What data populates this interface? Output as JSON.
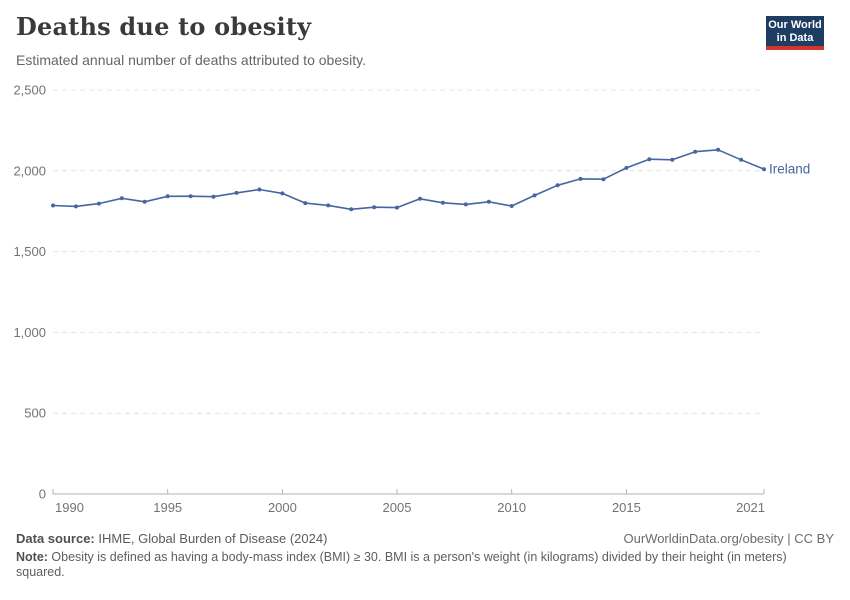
{
  "header": {
    "title": "Deaths due to obesity",
    "subtitle": "Estimated annual number of deaths attributed to obesity.",
    "logo": {
      "line1": "Our World",
      "line2": "in Data"
    }
  },
  "chart_data": {
    "type": "line",
    "title": "Deaths due to obesity",
    "subtitle": "Estimated annual number of deaths attributed to obesity.",
    "x": [
      1990,
      1991,
      1992,
      1993,
      1994,
      1995,
      1996,
      1997,
      1998,
      1999,
      2000,
      2001,
      2002,
      2003,
      2004,
      2005,
      2006,
      2007,
      2008,
      2009,
      2010,
      2011,
      2012,
      2013,
      2014,
      2015,
      2016,
      2017,
      2018,
      2019,
      2020,
      2021
    ],
    "series": [
      {
        "name": "Ireland",
        "values": [
          1785,
          1780,
          1797,
          1830,
          1808,
          1842,
          1843,
          1840,
          1863,
          1884,
          1860,
          1800,
          1786,
          1762,
          1775,
          1772,
          1827,
          1802,
          1792,
          1808,
          1782,
          1848,
          1910,
          1950,
          1948,
          2018,
          2072,
          2068,
          2118,
          2130,
          2068,
          2010
        ]
      }
    ],
    "xlabel": "",
    "ylabel": "",
    "ylim": [
      0,
      2500
    ],
    "yticks": [
      0,
      500,
      1000,
      1500,
      2000,
      2500
    ],
    "ytick_labels": [
      "0",
      "500",
      "1,000",
      "1,500",
      "2,000",
      "2,500"
    ],
    "xticks": [
      1990,
      1995,
      2000,
      2005,
      2010,
      2015,
      2021
    ],
    "grid": "horizontal-dashed",
    "legend": "entity label at right end of line",
    "colors": {
      "line": "#4766a0",
      "grid": "#e4e4e4",
      "axis": "#b3b3b3",
      "tick_label": "#737373"
    }
  },
  "footer": {
    "data_source_label": "Data source:",
    "data_source": " IHME, Global Burden of Disease (2024)",
    "link": "OurWorldinData.org/obesity | CC BY",
    "note_label": "Note:",
    "note": " Obesity is defined as having a body-mass index (BMI) ≥ 30. BMI is a person's weight (in kilograms) divided by their height (in meters) squared."
  }
}
